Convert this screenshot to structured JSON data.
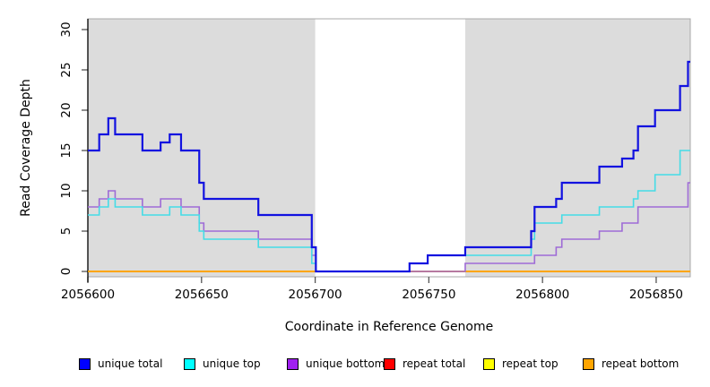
{
  "chart_data": {
    "type": "line",
    "step": true,
    "title": "",
    "xlabel": "Coordinate in Reference Genome",
    "ylabel": "Read Coverage Depth",
    "xlim": [
      2056600,
      2056865
    ],
    "ylim": [
      0,
      31
    ],
    "x_ticks": [
      2056600,
      2056650,
      2056700,
      2056750,
      2056800,
      2056850
    ],
    "y_ticks": [
      0,
      5,
      10,
      15,
      20,
      25,
      30
    ],
    "grid": false,
    "plot_background_color": "#dcdcdc",
    "no_data_region": {
      "from": 2056700,
      "to": 2056766,
      "color": "#ffffff"
    },
    "series": [
      {
        "name": "repeat top",
        "color": "#ffff00",
        "line_width": 1.4,
        "segments": [
          [
            [
              2056600,
              0
            ],
            [
              2056865,
              0
            ]
          ]
        ]
      },
      {
        "name": "repeat total",
        "color": "#e03030",
        "line_width": 1.6,
        "segments": [
          [
            [
              2056600,
              0
            ],
            [
              2056865,
              0
            ]
          ]
        ]
      },
      {
        "name": "repeat bottom",
        "color": "#ffa500",
        "line_width": 2,
        "segments": [
          [
            [
              2056600,
              0
            ],
            [
              2056700,
              0
            ]
          ],
          [
            [
              2056766,
              0
            ],
            [
              2056865,
              0
            ]
          ]
        ]
      },
      {
        "name": "unique bottom",
        "color": "#9e6bd6",
        "line_width": 1.6,
        "segments": [
          [
            [
              2056600,
              8
            ],
            [
              2056605,
              9
            ],
            [
              2056609,
              10
            ],
            [
              2056612,
              9
            ],
            [
              2056624,
              8
            ],
            [
              2056632,
              9
            ],
            [
              2056641,
              8
            ],
            [
              2056649,
              6
            ],
            [
              2056651,
              5
            ],
            [
              2056675,
              4
            ],
            [
              2056698.5,
              2
            ],
            [
              2056700.3,
              0
            ],
            [
              2056766,
              1
            ],
            [
              2056796.5,
              2
            ],
            [
              2056806,
              3
            ],
            [
              2056808.5,
              4
            ],
            [
              2056825,
              5
            ],
            [
              2056835,
              6
            ],
            [
              2056842,
              8
            ],
            [
              2056864,
              11
            ]
          ]
        ]
      },
      {
        "name": "unique top",
        "color": "#45dce6",
        "line_width": 1.6,
        "segments": [
          [
            [
              2056600,
              7
            ],
            [
              2056605,
              8
            ],
            [
              2056609,
              9
            ],
            [
              2056612,
              8
            ],
            [
              2056624,
              7
            ],
            [
              2056636,
              8
            ],
            [
              2056641,
              7
            ],
            [
              2056649,
              5
            ],
            [
              2056651,
              4
            ],
            [
              2056675,
              3
            ],
            [
              2056698.5,
              1
            ],
            [
              2056700.3,
              0
            ],
            [
              2056741.5,
              1
            ],
            [
              2056749.5,
              2
            ],
            [
              2056795,
              4
            ],
            [
              2056796.5,
              6
            ],
            [
              2056808.5,
              7
            ],
            [
              2056825,
              8
            ],
            [
              2056840,
              9
            ],
            [
              2056842,
              10
            ],
            [
              2056849.5,
              12
            ],
            [
              2056860.5,
              15
            ]
          ]
        ]
      },
      {
        "name": "unique total",
        "color": "#1212e0",
        "line_width": 2.2,
        "segments": [
          [
            [
              2056600,
              15
            ],
            [
              2056605,
              17
            ],
            [
              2056609,
              19
            ],
            [
              2056612,
              17
            ],
            [
              2056624,
              15
            ],
            [
              2056632,
              16
            ],
            [
              2056636,
              17
            ],
            [
              2056641,
              15
            ],
            [
              2056649,
              11
            ],
            [
              2056651,
              9
            ],
            [
              2056675,
              7
            ],
            [
              2056698.5,
              3
            ],
            [
              2056700.3,
              0
            ],
            [
              2056741.5,
              1
            ],
            [
              2056749.5,
              2
            ],
            [
              2056766,
              3
            ],
            [
              2056795,
              5
            ],
            [
              2056796.5,
              8
            ],
            [
              2056806,
              9
            ],
            [
              2056808.5,
              11
            ],
            [
              2056825,
              13
            ],
            [
              2056835,
              14
            ],
            [
              2056840,
              15
            ],
            [
              2056842,
              18
            ],
            [
              2056849.5,
              20
            ],
            [
              2056860.5,
              23
            ],
            [
              2056864,
              26
            ]
          ]
        ]
      }
    ],
    "legend_position": "bottom"
  },
  "legend": {
    "items": [
      {
        "label": "unique total",
        "color": "#0000ff"
      },
      {
        "label": "unique top",
        "color": "#00ffff"
      },
      {
        "label": "unique bottom",
        "color": "#a020f0"
      },
      {
        "label": "repeat total",
        "color": "#ff0000"
      },
      {
        "label": "repeat top",
        "color": "#ffff00"
      },
      {
        "label": "repeat bottom",
        "color": "#ffa500"
      }
    ]
  }
}
